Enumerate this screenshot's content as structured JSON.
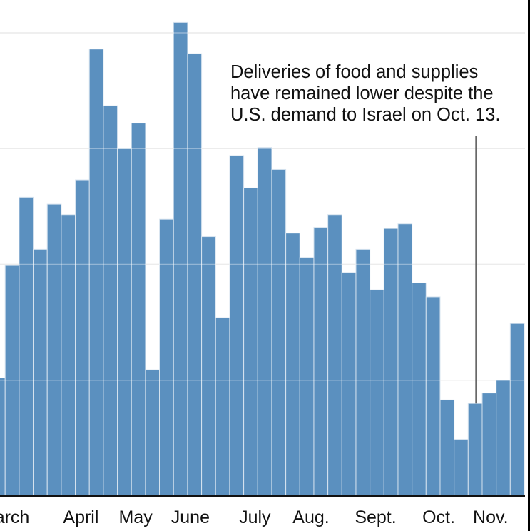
{
  "chart_data": {
    "type": "bar",
    "title": "",
    "xlabel": "",
    "ylabel": "",
    "y_units": "gridline intervals (no tick labels shown)",
    "ylim": [
      0,
      4.2
    ],
    "gridlines": [
      1,
      2,
      3,
      4
    ],
    "grid": true,
    "bar_color": "#5b90bf",
    "first_bar_partially_cropped": true,
    "values": [
      1.02,
      1.99,
      2.58,
      2.13,
      2.52,
      2.43,
      2.73,
      3.86,
      3.37,
      3.0,
      3.22,
      1.09,
      2.39,
      4.09,
      3.82,
      2.24,
      1.54,
      2.94,
      2.66,
      3.01,
      2.82,
      2.27,
      2.06,
      2.32,
      2.43,
      1.93,
      2.13,
      1.78,
      2.31,
      2.35,
      1.84,
      1.72,
      0.83,
      0.49,
      0.8,
      0.89,
      1.0,
      1.49
    ],
    "x_tick_labels": [
      {
        "label": "arch",
        "bar_index": 1.5
      },
      {
        "label": "April",
        "bar_index": 6.4
      },
      {
        "label": "May",
        "bar_index": 10.3
      },
      {
        "label": "June",
        "bar_index": 14.2
      },
      {
        "label": "July",
        "bar_index": 18.8
      },
      {
        "label": "Aug.",
        "bar_index": 22.8
      },
      {
        "label": "Sept.",
        "bar_index": 27.4
      },
      {
        "label": "Oct.",
        "bar_index": 31.9
      },
      {
        "label": "Nov.",
        "bar_index": 35.6
      }
    ],
    "annotation": {
      "lines": [
        "Deliveries of food and supplies",
        "have remained lower despite the",
        "U.S. demand to Israel on Oct. 13."
      ],
      "points_to_bar_index": 34.55
    }
  }
}
